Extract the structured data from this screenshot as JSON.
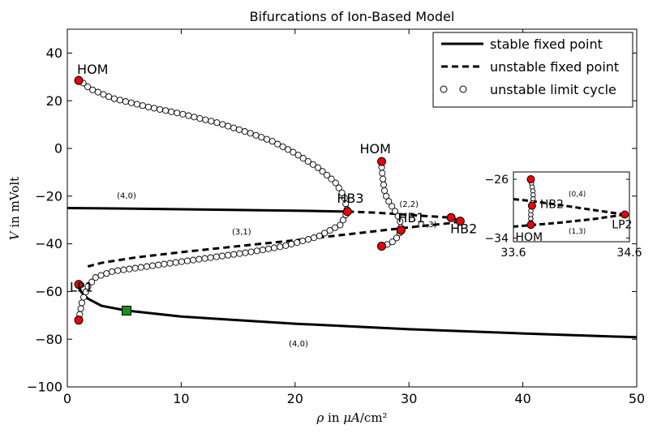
{
  "chart_data": [
    {
      "type": "line",
      "title": "Bifurcations of Ion-Based Model",
      "xlabel": "ρ in μA/cm²",
      "ylabel": "V in mVolt",
      "xlim": [
        0,
        50
      ],
      "ylim": [
        -100,
        50
      ],
      "xticks": [
        "0",
        "10",
        "20",
        "30",
        "40",
        "50"
      ],
      "yticks": [
        "−100",
        "−80",
        "−60",
        "−40",
        "−20",
        "0",
        "20",
        "40"
      ],
      "legend": {
        "placement": "top-right",
        "entries": [
          "stable fixed point",
          "unstable fixed point",
          "unstable limit cycle"
        ]
      },
      "series": [
        {
          "name": "stable fixed point",
          "style": "solid",
          "points": [
            [
              0,
              -25
            ],
            [
              5,
              -25.2
            ],
            [
              10,
              -25.5
            ],
            [
              15,
              -25.8
            ],
            [
              20,
              -26.1
            ],
            [
              24.6,
              -26.5
            ]
          ]
        },
        {
          "name": "stable fixed point",
          "style": "solid",
          "points": [
            [
              1,
              -57
            ],
            [
              1.2,
              -60
            ],
            [
              1.8,
              -63
            ],
            [
              3,
              -66
            ],
            [
              5.2,
              -68
            ],
            [
              10,
              -70.5
            ],
            [
              20,
              -73.5
            ],
            [
              30,
              -75.8
            ],
            [
              40,
              -77.6
            ],
            [
              50,
              -79.2
            ]
          ]
        },
        {
          "name": "unstable fixed point",
          "style": "dashed",
          "points": [
            [
              24.6,
              -26.5
            ],
            [
              27,
              -26.9
            ],
            [
              29,
              -27.5
            ],
            [
              31,
              -28.2
            ],
            [
              33.7,
              -29
            ],
            [
              34.5,
              -30.5
            ]
          ]
        },
        {
          "name": "unstable fixed point",
          "style": "dashed",
          "points": [
            [
              34.5,
              -30.5
            ],
            [
              33.7,
              -31.3
            ],
            [
              31,
              -32.6
            ],
            [
              28,
              -34.2
            ],
            [
              25,
              -35.8
            ],
            [
              20,
              -38.5
            ],
            [
              15,
              -41
            ],
            [
              10,
              -43.5
            ],
            [
              6,
              -45.7
            ],
            [
              3,
              -48
            ],
            [
              1.8,
              -49.5
            ]
          ]
        },
        {
          "name": "unstable limit cycle",
          "style": "circles",
          "points": [
            [
              1,
              29
            ],
            [
              2,
              25
            ],
            [
              4,
              21
            ],
            [
              7,
              17.5
            ],
            [
              10,
              14.5
            ],
            [
              13,
              11
            ],
            [
              16,
              6.5
            ],
            [
              18,
              3
            ],
            [
              20,
              -2
            ],
            [
              22,
              -8
            ],
            [
              23.5,
              -14
            ],
            [
              24.3,
              -20
            ],
            [
              24.6,
              -26.5
            ],
            [
              24,
              -32
            ],
            [
              22,
              -37
            ],
            [
              19,
              -41
            ],
            [
              16,
              -43.5
            ],
            [
              13,
              -45.5
            ],
            [
              10,
              -47.5
            ],
            [
              7,
              -49.5
            ],
            [
              4,
              -51.5
            ],
            [
              2.5,
              -54
            ],
            [
              1.8,
              -58
            ],
            [
              1.3,
              -64
            ],
            [
              1,
              -72
            ]
          ]
        },
        {
          "name": "unstable limit cycle",
          "style": "circles",
          "points": [
            [
              27.6,
              -5.5
            ],
            [
              27.6,
              -8
            ],
            [
              27.7,
              -12
            ],
            [
              27.8,
              -16
            ],
            [
              27.9,
              -19
            ],
            [
              28.2,
              -22
            ],
            [
              28.6,
              -25
            ],
            [
              29,
              -28
            ],
            [
              29.25,
              -31
            ],
            [
              29.3,
              -34
            ],
            [
              29.1,
              -36.5
            ],
            [
              28.7,
              -38.8
            ],
            [
              28,
              -40.5
            ],
            [
              27.6,
              -41
            ]
          ]
        }
      ],
      "special_points": [
        {
          "label": "HOM",
          "x": 1,
          "y": 28.5,
          "color": "#e8000b"
        },
        {
          "label": "LP1",
          "x": 1,
          "y": -57,
          "color": "#e8000b"
        },
        {
          "label": "",
          "x": 1,
          "y": -72,
          "color": "#e8000b"
        },
        {
          "label": "HB3",
          "x": 24.6,
          "y": -26.5,
          "color": "#e8000b"
        },
        {
          "label": "HOM",
          "x": 27.6,
          "y": -5.5,
          "color": "#e8000b"
        },
        {
          "label": "",
          "x": 27.6,
          "y": -41,
          "color": "#e8000b"
        },
        {
          "label": "HB1",
          "x": 29.3,
          "y": -34.3,
          "color": "#e8000b"
        },
        {
          "label": "HB2",
          "x": 33.7,
          "y": -29,
          "color": "#e8000b"
        },
        {
          "label": "LP2",
          "x": 34.5,
          "y": -30.5,
          "color": "#e8000b"
        },
        {
          "label": "",
          "x": 5.2,
          "y": -68,
          "color": "#1e8c1e",
          "shape": "square"
        }
      ],
      "annotations": [
        {
          "text": "(4,0)",
          "x": 5.2,
          "y": -21
        },
        {
          "text": "(3,1)",
          "x": 15.3,
          "y": -36
        },
        {
          "text": "(4,0)",
          "x": 20.3,
          "y": -83
        },
        {
          "text": "(2,2)",
          "x": 30,
          "y": -24.5
        },
        {
          "text": "(1,3)",
          "x": 31.6,
          "y": -33
        }
      ],
      "colors": {
        "line": "#000000",
        "cycle_fill": "#ffffff",
        "bifurcation": "#e8000b",
        "marker": "#1e8c1e"
      }
    },
    {
      "type": "line",
      "title": "",
      "xlim": [
        33.6,
        34.6
      ],
      "ylim": [
        -34.5,
        -25
      ],
      "xticks": [
        "33.6",
        "34.6"
      ],
      "yticks": [
        "−26",
        "−34"
      ],
      "series": [
        {
          "name": "",
          "style": "dashed",
          "points": [
            [
              33.6,
              -28.7
            ],
            [
              33.75,
              -28.95
            ],
            [
              34,
              -29.5
            ],
            [
              34.3,
              -30.2
            ],
            [
              34.56,
              -30.8
            ]
          ]
        },
        {
          "name": "",
          "style": "dashed",
          "points": [
            [
              34.56,
              -30.8
            ],
            [
              34.3,
              -31.4
            ],
            [
              34,
              -31.9
            ],
            [
              33.75,
              -32.25
            ],
            [
              33.6,
              -32.45
            ]
          ]
        },
        {
          "name": "",
          "style": "circles",
          "points": [
            [
              33.75,
              -26
            ],
            [
              33.76,
              -26.9
            ],
            [
              33.77,
              -27.8
            ],
            [
              33.77,
              -28.6
            ],
            [
              33.76,
              -29.5
            ],
            [
              33.75,
              -30.3
            ],
            [
              33.75,
              -31.1
            ],
            [
              33.75,
              -31.9
            ]
          ]
        }
      ],
      "special_points": [
        {
          "label": "",
          "x": 33.75,
          "y": -26,
          "color": "#e8000b"
        },
        {
          "label": "HB2",
          "x": 33.76,
          "y": -29.6,
          "color": "#e8000b"
        },
        {
          "label": "LP2",
          "x": 34.56,
          "y": -30.8,
          "color": "#e8000b"
        },
        {
          "label": "HOM",
          "x": 33.75,
          "y": -32.2,
          "color": "#e8000b"
        }
      ],
      "annotations": [
        {
          "text": "(0,4)",
          "x": 34.15,
          "y": -28.3
        },
        {
          "text": "(1,3)",
          "x": 34.15,
          "y": -33.4
        }
      ]
    }
  ]
}
